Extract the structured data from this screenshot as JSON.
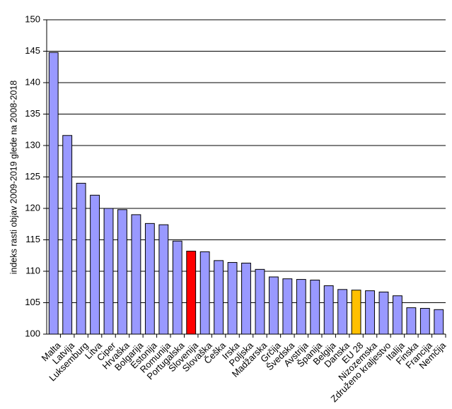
{
  "chart_data": {
    "type": "bar",
    "title": "",
    "xlabel": "",
    "ylabel": "indeks rasti objav 2009-2019 glede na 2008-2018",
    "ylim": [
      100,
      150
    ],
    "yticks": [
      100,
      105,
      110,
      115,
      120,
      125,
      130,
      135,
      140,
      145,
      150
    ],
    "grid": true,
    "categories": [
      "Malta",
      "Latvija",
      "Luksemburg",
      "Litva",
      "Ciper",
      "Hrvaška",
      "Bolgarija",
      "Estonija",
      "Romunija",
      "Portugalska",
      "Slovenija",
      "Slovaška",
      "Češka",
      "Irska",
      "Poljska",
      "Madžarska",
      "Grčija",
      "Švedska",
      "Avstrija",
      "Španija",
      "Belgija",
      "Danska",
      "EU 28",
      "Nizozemska",
      "Združeno kraljestvo",
      "Italija",
      "Finska",
      "Francija",
      "Nemčija"
    ],
    "values": [
      144.8,
      131.6,
      124.0,
      122.1,
      120.0,
      119.8,
      119.0,
      117.6,
      117.4,
      114.8,
      113.2,
      113.1,
      111.7,
      111.4,
      111.3,
      110.3,
      109.1,
      108.8,
      108.7,
      108.6,
      107.7,
      107.1,
      107.0,
      106.9,
      106.7,
      106.1,
      104.2,
      104.1,
      103.9
    ],
    "colors": {
      "default": "#9999ff",
      "highlight": {
        "Slovenija": "#ff0000",
        "EU 28": "#ffc000"
      },
      "edge": "#000000",
      "grid": "#000000"
    }
  }
}
